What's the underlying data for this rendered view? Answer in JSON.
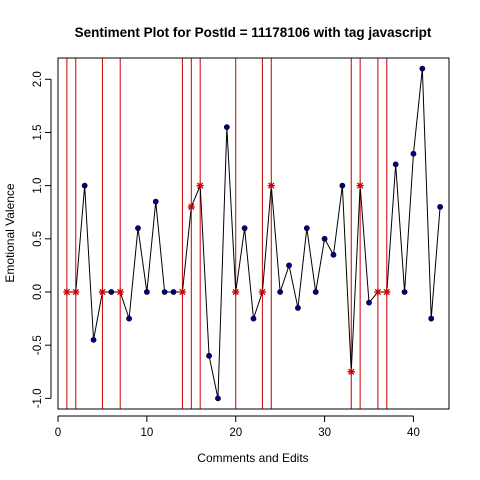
{
  "chart_data": {
    "type": "line",
    "title": "Sentiment Plot for PostId =  11178106  with tag  javascript",
    "xlabel": "Comments and Edits",
    "ylabel": "Emotional Valence",
    "xlim": [
      0,
      44
    ],
    "ylim": [
      -1.1,
      2.2
    ],
    "xticks": [
      0,
      10,
      20,
      30,
      40
    ],
    "xtick_labels": [
      "0",
      "10",
      "20",
      "30",
      "40"
    ],
    "yticks": [
      -1.0,
      -0.5,
      0.0,
      0.5,
      1.0,
      1.5,
      2.0
    ],
    "ytick_labels": [
      "-1.0",
      "-0.5",
      "0.0",
      "0.5",
      "1.0",
      "1.5",
      "2.0"
    ],
    "grid": false,
    "series": [
      {
        "x": [
          1,
          2,
          3,
          4,
          5,
          6,
          7,
          8,
          9,
          10,
          11,
          12,
          13,
          14,
          15,
          16,
          17,
          18,
          19,
          20,
          21,
          22,
          23,
          24,
          25,
          26,
          27,
          28,
          29,
          30,
          31,
          32,
          33,
          34,
          35,
          36,
          37,
          38,
          39,
          40,
          41,
          42,
          43
        ],
        "values": [
          0,
          0,
          1.0,
          -0.45,
          0,
          0,
          0,
          -0.25,
          0.6,
          0,
          0.85,
          0,
          0,
          0,
          0.8,
          1.0,
          -0.6,
          -1.0,
          1.55,
          0,
          0.6,
          -0.25,
          0,
          1.0,
          0,
          0.25,
          -0.15,
          0.6,
          0,
          0.5,
          0.35,
          1.0,
          -0.75,
          1.0,
          -0.1,
          0,
          0,
          1.2,
          0,
          1.3,
          2.1,
          -0.25,
          0.8
        ],
        "edit_points": [
          1,
          2,
          5,
          7,
          14,
          15,
          16,
          20,
          23,
          24,
          33,
          34,
          36,
          37
        ]
      }
    ],
    "vertical_lines": [
      1,
      2,
      5,
      7,
      14,
      15,
      16,
      20,
      23,
      24,
      33,
      34,
      36,
      37
    ],
    "colors": {
      "line": "#000000",
      "point": "#00008B",
      "edit_marker": "#CC0000",
      "vertical_line": "#CC0000"
    }
  }
}
